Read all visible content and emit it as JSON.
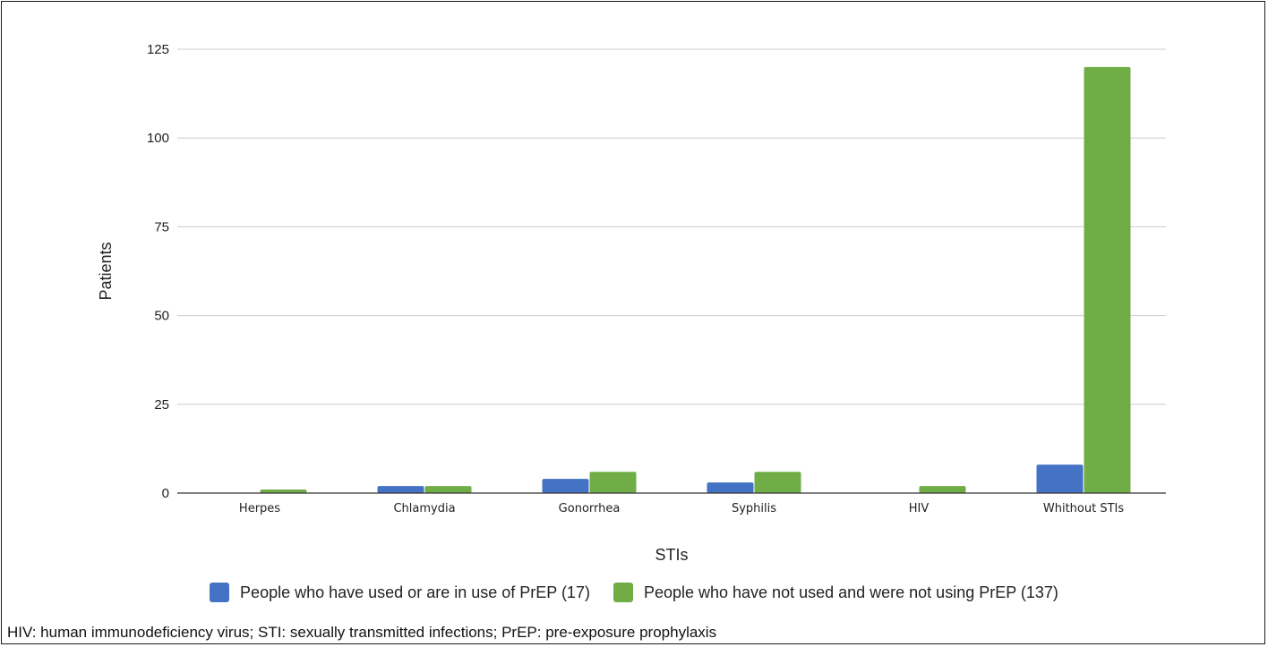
{
  "chart_data": {
    "type": "bar",
    "categories": [
      "Herpes",
      "Chlamydia",
      "Gonorrhea",
      "Syphilis",
      "HIV",
      "Whithout STIs"
    ],
    "series": [
      {
        "name": "People who have used or are in use of PrEP (17)",
        "color": "#4472c4",
        "values": [
          0,
          2,
          4,
          3,
          0,
          8
        ]
      },
      {
        "name": "People who have not used and were not using PrEP (137)",
        "color": "#70ad47",
        "values": [
          1,
          2,
          6,
          6,
          2,
          120
        ]
      }
    ],
    "xlabel": "STIs",
    "ylabel": "Patients",
    "ylim": [
      0,
      125
    ],
    "yticks": [
      0,
      25,
      50,
      75,
      100,
      125
    ],
    "grid": true,
    "legend_position": "bottom"
  },
  "footnote": "HIV: human immunodeficiency virus; STI: sexually transmitted infections; PrEP: pre-exposure prophylaxis"
}
